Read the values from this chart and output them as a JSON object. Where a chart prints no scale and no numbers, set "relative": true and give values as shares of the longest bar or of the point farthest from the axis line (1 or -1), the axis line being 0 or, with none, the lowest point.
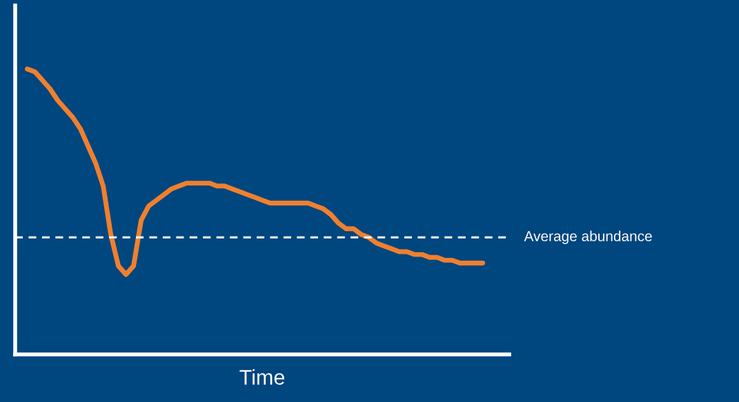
{
  "chart_data": {
    "type": "line",
    "relative": true,
    "xlabel": "Time",
    "categories": [
      null,
      null,
      null,
      null,
      null,
      null,
      null,
      null,
      null,
      null,
      null,
      null,
      null,
      null,
      null,
      null,
      null,
      null,
      null,
      null,
      null,
      null,
      null,
      null,
      null,
      null,
      null,
      null,
      null,
      null,
      null,
      null,
      null,
      null,
      null,
      null,
      null,
      null,
      null,
      null,
      null,
      null,
      null,
      null,
      null,
      null,
      null,
      null,
      null,
      null,
      null,
      null,
      null,
      null,
      null,
      null,
      null,
      null,
      null,
      null,
      null
    ],
    "series": [
      {
        "color": "#f0802e",
        "values": [
          1,
          0.99,
          0.96,
          0.93,
          0.89,
          0.86,
          0.83,
          0.79,
          0.73,
          0.67,
          0.59,
          0.42,
          0.31,
          0.28,
          0.31,
          0.47,
          0.52,
          0.54,
          0.56,
          0.58,
          0.59,
          0.6,
          0.6,
          0.6,
          0.6,
          0.59,
          0.59,
          0.58,
          0.57,
          0.56,
          0.55,
          0.54,
          0.53,
          0.53,
          0.53,
          0.53,
          0.53,
          0.53,
          0.52,
          0.51,
          0.49,
          0.46,
          0.44,
          0.44,
          0.42,
          0.41,
          0.39,
          0.38,
          0.37,
          0.36,
          0.36,
          0.35,
          0.35,
          0.34,
          0.34,
          0.33,
          0.33,
          0.32,
          0.32,
          0.32,
          0.32
        ]
      }
    ],
    "ref_lines": [
      {
        "axis": "y",
        "value": 0.41,
        "label": "Average abundance",
        "color": "#ffffff",
        "line_style": "dashed"
      }
    ],
    "grid": false,
    "legend": false,
    "marker": "none",
    "line_style": "solid"
  }
}
